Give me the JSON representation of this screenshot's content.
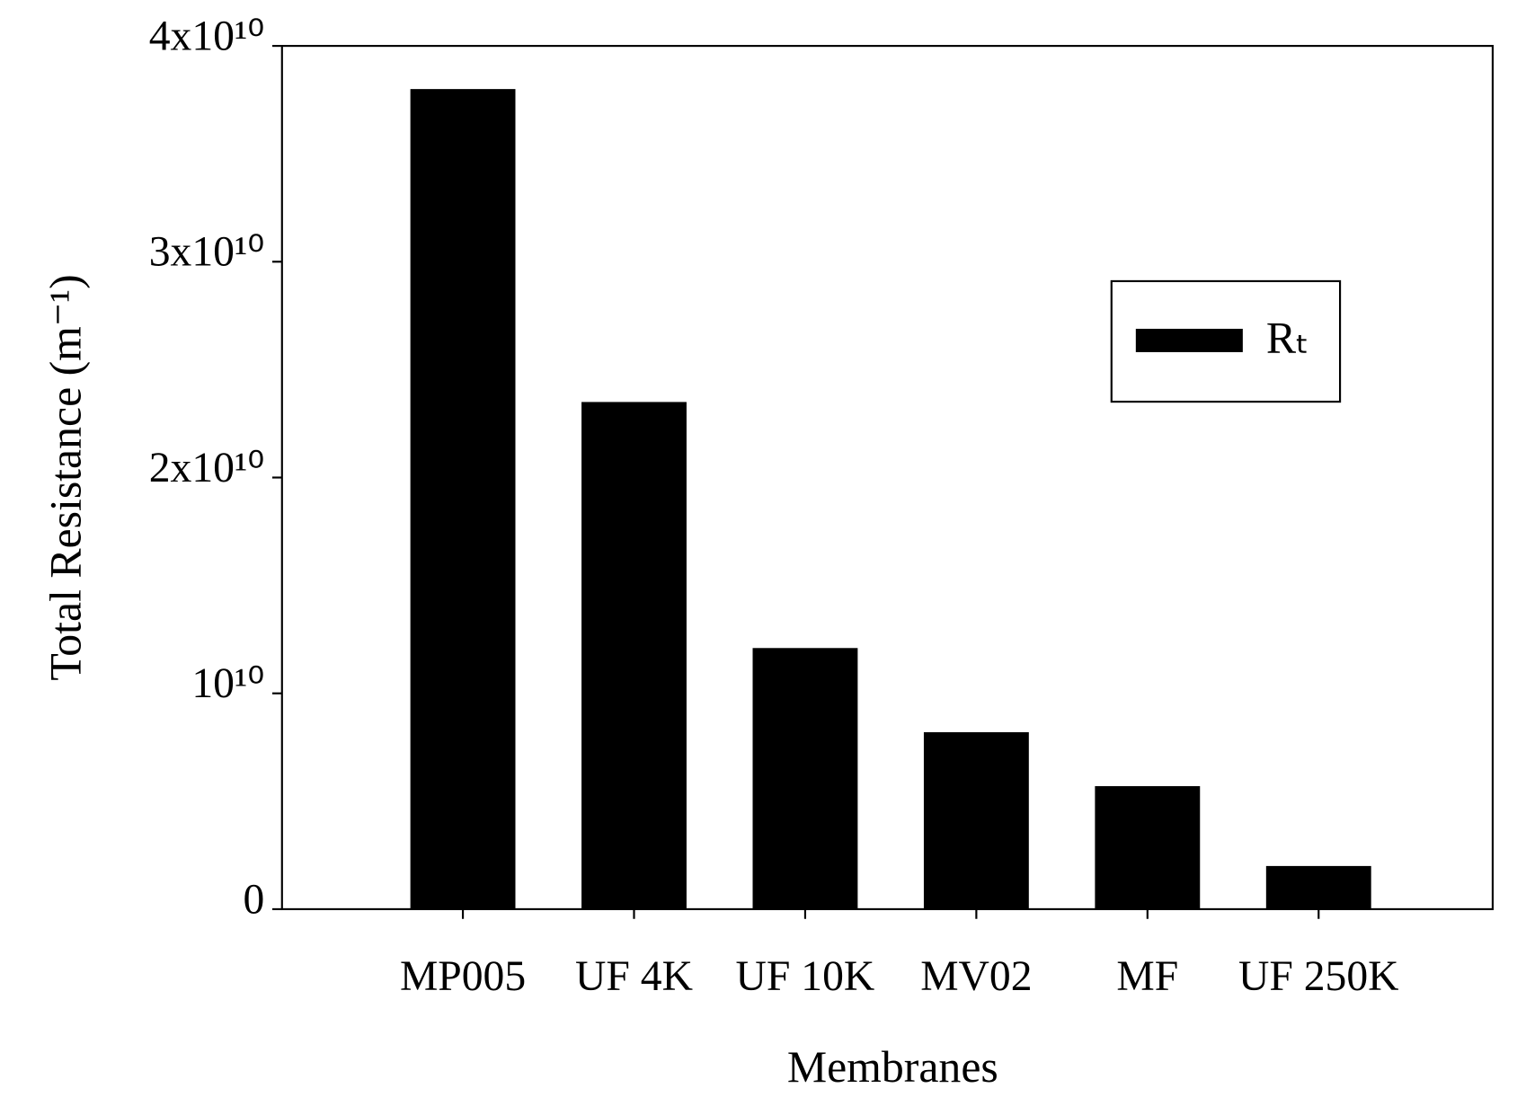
{
  "chart_data": {
    "type": "bar",
    "x_label": "Membranes",
    "y_label": "Total Resistance (m⁻¹)",
    "categories": [
      "MP005",
      "UF 4K",
      "UF 10K",
      "MV02",
      "MF",
      "UF 250K"
    ],
    "series": [
      {
        "name": "Rₜ",
        "color": "#000000",
        "values": [
          38000000000,
          23500000000,
          12100000000,
          8200000000,
          5700000000,
          2000000000
        ]
      }
    ],
    "ylim": [
      0,
      40000000000
    ],
    "yticks": [
      0,
      {
        "value": 10000000000,
        "label": "10¹⁰"
      },
      {
        "value": 20000000000,
        "label": "2x10¹⁰"
      },
      {
        "value": 30000000000,
        "label": "3x10¹⁰"
      },
      {
        "value": 40000000000,
        "label": "4x10¹⁰"
      }
    ],
    "legend": "upper right"
  }
}
